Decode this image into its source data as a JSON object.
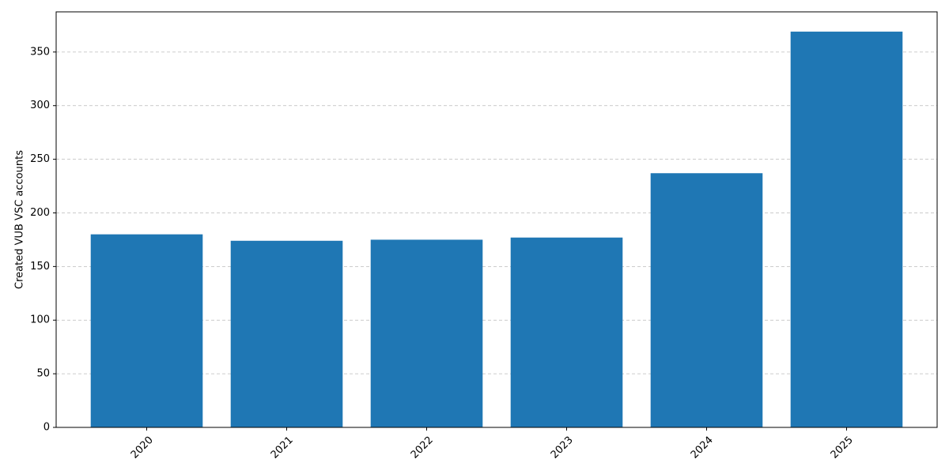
{
  "chart_data": {
    "type": "bar",
    "ylabel": "Created VUB VSC accounts",
    "categories": [
      "2020",
      "2021",
      "2022",
      "2023",
      "2024",
      "2025"
    ],
    "values": [
      180,
      174,
      175,
      177,
      237,
      369
    ],
    "color": "#1f77b4",
    "ylim": [
      0,
      387.45
    ],
    "yticks": [
      0,
      50,
      100,
      150,
      200,
      250,
      300,
      350
    ],
    "grid": true
  }
}
